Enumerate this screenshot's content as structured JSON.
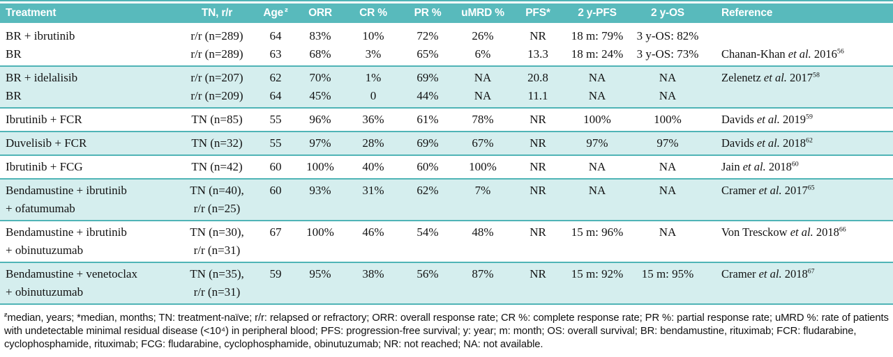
{
  "table": {
    "columns": [
      {
        "label": "Treatment"
      },
      {
        "label": "TN, r/r"
      },
      {
        "label": "Age",
        "sup": "ƶ"
      },
      {
        "label": "ORR"
      },
      {
        "label": "CR %"
      },
      {
        "label": "PR %"
      },
      {
        "label": "uMRD %"
      },
      {
        "label": "PFS*"
      },
      {
        "label": "2 y-PFS"
      },
      {
        "label": "2 y-OS"
      },
      {
        "label": "Reference"
      }
    ],
    "groups": [
      {
        "shade": false,
        "rows": [
          {
            "cells": [
              "BR + ibrutinib",
              "r/r (n=289)",
              "64",
              "83%",
              "10%",
              "72%",
              "26%",
              "NR",
              "18 m: 79%",
              "3 y-OS: 82%"
            ],
            "ref": null
          },
          {
            "cells": [
              "BR",
              "r/r (n=289)",
              "63",
              "68%",
              "3%",
              "65%",
              "6%",
              "13.3",
              "18 m: 24%",
              "3 y-OS: 73%"
            ],
            "ref": {
              "pre": "Chanan-Khan ",
              "etal": "et al.",
              "post": " 2016",
              "sup": "56"
            }
          }
        ]
      },
      {
        "shade": true,
        "rows": [
          {
            "cells": [
              "BR + idelalisib",
              "r/r (n=207)",
              "62",
              "70%",
              "1%",
              "69%",
              "NA",
              "20.8",
              "NA",
              "NA"
            ],
            "ref": {
              "pre": "Zelenetz ",
              "etal": "et al.",
              "post": " 2017",
              "sup": "58"
            }
          },
          {
            "cells": [
              "BR",
              "r/r (n=209)",
              "64",
              "45%",
              "0",
              "44%",
              "NA",
              "11.1",
              "NA",
              "NA"
            ],
            "ref": null
          }
        ]
      },
      {
        "shade": false,
        "rows": [
          {
            "cells": [
              "Ibrutinib + FCR",
              "TN (n=85)",
              "55",
              "96%",
              "36%",
              "61%",
              "78%",
              "NR",
              "100%",
              "100%"
            ],
            "ref": {
              "pre": "Davids ",
              "etal": "et al.",
              "post": " 2019",
              "sup": "59"
            }
          }
        ]
      },
      {
        "shade": true,
        "rows": [
          {
            "cells": [
              "Duvelisib + FCR",
              "TN (n=32)",
              "55",
              "97%",
              "28%",
              "69%",
              "67%",
              "NR",
              "97%",
              "97%"
            ],
            "ref": {
              "pre": "Davids ",
              "etal": "et al.",
              "post": " 2018",
              "sup": "62"
            }
          }
        ]
      },
      {
        "shade": false,
        "rows": [
          {
            "cells": [
              "Ibrutinib + FCG",
              "TN (n=42)",
              "60",
              "100%",
              "40%",
              "60%",
              "100%",
              "NR",
              "NA",
              "NA"
            ],
            "ref": {
              "pre": "Jain ",
              "etal": "et al.",
              "post": " 2018",
              "sup": "60"
            }
          }
        ]
      },
      {
        "shade": true,
        "rows": [
          {
            "cells": [
              "Bendamustine + ibrutinib",
              "TN (n=40),",
              "60",
              "93%",
              "31%",
              "62%",
              "7%",
              "NR",
              "NA",
              "NA"
            ],
            "ref": {
              "pre": "Cramer ",
              "etal": "et al.",
              "post": " 2017",
              "sup": "65"
            }
          },
          {
            "cells": [
              "+ ofatumumab",
              "r/r (n=25)",
              "",
              "",
              "",
              "",
              "",
              "",
              "",
              ""
            ],
            "ref": null
          }
        ]
      },
      {
        "shade": false,
        "rows": [
          {
            "cells": [
              "Bendamustine + ibrutinib",
              "TN (n=30),",
              "67",
              "100%",
              "46%",
              "54%",
              "48%",
              "NR",
              "15 m: 96%",
              "NA"
            ],
            "ref": {
              "pre": "Von Tresckow ",
              "etal": "et al.",
              "post": " 2018",
              "sup": "66"
            }
          },
          {
            "cells": [
              "+ obinutuzumab",
              "r/r (n=31)",
              "",
              "",
              "",
              "",
              "",
              "",
              "",
              ""
            ],
            "ref": null
          }
        ]
      },
      {
        "shade": true,
        "rows": [
          {
            "cells": [
              "Bendamustine + venetoclax",
              "TN (n=35),",
              "59",
              "95%",
              "38%",
              "56%",
              "87%",
              "NR",
              "15 m: 92%",
              "15 m: 95%"
            ],
            "ref": {
              "pre": "Cramer ",
              "etal": "et al.",
              "post": " 2018",
              "sup": "67"
            }
          },
          {
            "cells": [
              "+ obinutuzumab",
              "r/r (n=31)",
              "",
              "",
              "",
              "",
              "",
              "",
              "",
              ""
            ],
            "ref": null
          }
        ]
      }
    ]
  },
  "footnote": {
    "sym": "ƶ",
    "text": "median, years; *median, months; TN: treatment-naïve; r/r: relapsed or refractory; ORR: overall response rate; CR %: complete response rate; PR %: partial response rate; uMRD %: rate of patients with undetectable minimal residual disease (<10⁴) in peripheral blood; PFS: progression-free survival; y: year; m: month; OS: overall survival; BR: bendamustine, rituximab; FCR: fludarabine, cyclophosphamide, rituximab; FCG: fludarabine, cyclophosphamide, obinutuzumab; NR: not reached; NA: not available."
  },
  "colors": {
    "header_bg": "#58babc",
    "shade_bg": "#d5eeee",
    "line": "#4fb4b6"
  }
}
